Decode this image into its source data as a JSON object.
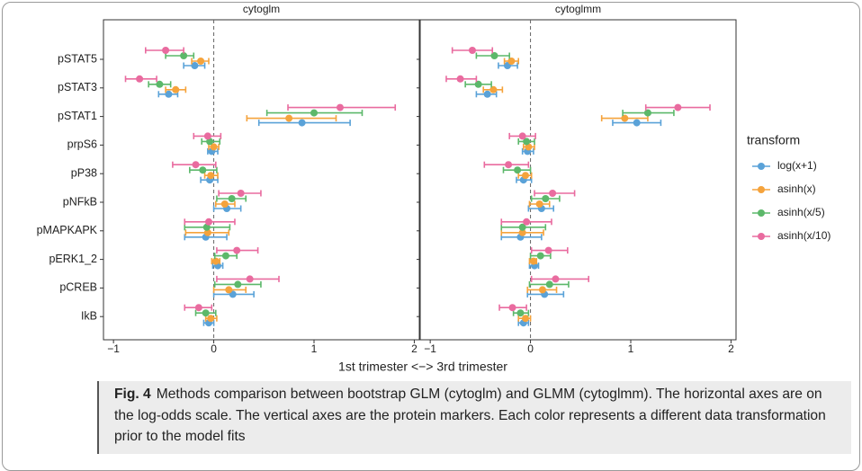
{
  "chart_data": [
    {
      "type": "dot-interval",
      "title": "cytoglm",
      "categories": [
        "pSTAT5",
        "pSTAT3",
        "pSTAT1",
        "prpS6",
        "pP38",
        "pNFkB",
        "pMAPKAPK",
        "pERK1_2",
        "pCREB",
        "IkB"
      ],
      "xlim": [
        -1.1,
        2.05
      ],
      "xticks": [
        {
          "value": -1,
          "label": "−1"
        },
        0,
        1,
        2
      ],
      "vline": 0,
      "series": [
        {
          "name": "log(x+1)",
          "color": "#5aa2d8",
          "values": [
            -0.19,
            -0.45,
            0.88,
            -0.02,
            -0.04,
            0.13,
            -0.08,
            0.04,
            0.19,
            -0.05
          ],
          "lower": [
            -0.3,
            -0.55,
            0.45,
            -0.06,
            -0.13,
            0.0,
            -0.29,
            -0.01,
            0.0,
            -0.1
          ],
          "upper": [
            -0.09,
            -0.36,
            1.36,
            0.04,
            0.04,
            0.27,
            0.13,
            0.09,
            0.4,
            0.0
          ]
        },
        {
          "name": "asinh(x)",
          "color": "#f5a33c",
          "values": [
            -0.13,
            -0.38,
            0.75,
            0.0,
            -0.03,
            0.11,
            -0.06,
            0.02,
            0.15,
            -0.03
          ],
          "lower": [
            -0.22,
            -0.48,
            0.33,
            -0.05,
            -0.09,
            0.02,
            -0.28,
            -0.02,
            0.0,
            -0.08
          ],
          "upper": [
            -0.05,
            -0.28,
            1.22,
            0.05,
            0.04,
            0.21,
            0.15,
            0.06,
            0.32,
            0.03
          ]
        },
        {
          "name": "asinh(x/5)",
          "color": "#5cb86a",
          "values": [
            -0.3,
            -0.54,
            1.0,
            -0.04,
            -0.11,
            0.18,
            -0.07,
            0.12,
            0.24,
            -0.08
          ],
          "lower": [
            -0.48,
            -0.65,
            0.53,
            -0.12,
            -0.24,
            0.03,
            -0.29,
            0.01,
            0.01,
            -0.18
          ],
          "upper": [
            -0.2,
            -0.43,
            1.48,
            0.06,
            0.03,
            0.32,
            0.16,
            0.23,
            0.47,
            0.02
          ]
        },
        {
          "name": "asinh(x/10)",
          "color": "#e96b9f",
          "values": [
            -0.48,
            -0.74,
            1.26,
            -0.06,
            -0.18,
            0.27,
            -0.05,
            0.23,
            0.36,
            -0.15
          ],
          "lower": [
            -0.68,
            -0.88,
            0.74,
            -0.2,
            -0.41,
            0.05,
            -0.29,
            0.03,
            0.03,
            -0.29
          ],
          "upper": [
            -0.3,
            -0.57,
            1.81,
            0.07,
            0.02,
            0.47,
            0.21,
            0.44,
            0.65,
            -0.02
          ]
        }
      ]
    },
    {
      "type": "dot-interval",
      "title": "cytoglmm",
      "categories": [
        "pSTAT5",
        "pSTAT3",
        "pSTAT1",
        "prpS6",
        "pP38",
        "pNFkB",
        "pMAPKAPK",
        "pERK1_2",
        "pCREB",
        "IkB"
      ],
      "xlim": [
        -1.1,
        2.05
      ],
      "xticks": [
        {
          "value": -1,
          "label": "−1"
        },
        0,
        1,
        2
      ],
      "vline": 0,
      "series": [
        {
          "name": "log(x+1)",
          "color": "#5aa2d8",
          "values": [
            -0.23,
            -0.43,
            1.06,
            -0.03,
            -0.07,
            0.11,
            -0.1,
            0.04,
            0.14,
            -0.07
          ],
          "lower": [
            -0.32,
            -0.54,
            0.82,
            -0.08,
            -0.14,
            -0.02,
            -0.29,
            -0.01,
            -0.03,
            -0.12
          ],
          "upper": [
            -0.13,
            -0.34,
            1.3,
            0.03,
            0.01,
            0.23,
            0.11,
            0.08,
            0.33,
            -0.02
          ]
        },
        {
          "name": "asinh(x)",
          "color": "#f5a33c",
          "values": [
            -0.19,
            -0.37,
            0.94,
            -0.02,
            -0.05,
            0.09,
            -0.08,
            0.03,
            0.12,
            -0.05
          ],
          "lower": [
            -0.26,
            -0.47,
            0.71,
            -0.07,
            -0.12,
            -0.01,
            -0.29,
            -0.01,
            -0.03,
            -0.12
          ],
          "upper": [
            -0.12,
            -0.28,
            1.17,
            0.04,
            0.01,
            0.19,
            0.13,
            0.06,
            0.26,
            0.0
          ]
        },
        {
          "name": "asinh(x/5)",
          "color": "#5cb86a",
          "values": [
            -0.36,
            -0.52,
            1.17,
            -0.04,
            -0.13,
            0.15,
            -0.08,
            0.1,
            0.19,
            -0.1
          ],
          "lower": [
            -0.54,
            -0.65,
            0.92,
            -0.12,
            -0.27,
            0.01,
            -0.29,
            0.0,
            -0.01,
            -0.17
          ],
          "upper": [
            -0.21,
            -0.39,
            1.43,
            0.04,
            0.0,
            0.29,
            0.15,
            0.2,
            0.38,
            -0.02
          ]
        },
        {
          "name": "asinh(x/10)",
          "color": "#e96b9f",
          "values": [
            -0.58,
            -0.7,
            1.47,
            -0.08,
            -0.22,
            0.22,
            -0.04,
            0.18,
            0.25,
            -0.18
          ],
          "lower": [
            -0.78,
            -0.84,
            1.15,
            -0.21,
            -0.46,
            0.04,
            -0.29,
            0.01,
            0.01,
            -0.31
          ],
          "upper": [
            -0.38,
            -0.54,
            1.79,
            0.05,
            -0.02,
            0.44,
            0.21,
            0.37,
            0.58,
            -0.04
          ]
        }
      ]
    }
  ],
  "x_label": "1st trimester <−> 3rd trimester",
  "legend_title": "transform",
  "caption": {
    "label": "Fig. 4",
    "text": "Methods comparison between bootstrap GLM (cytoglm) and GLMM (cytoglmm). The horizontal axes are on the log-odds scale. The vertical axes are the protein markers. Each color represents a different data transformation prior to the model fits"
  }
}
